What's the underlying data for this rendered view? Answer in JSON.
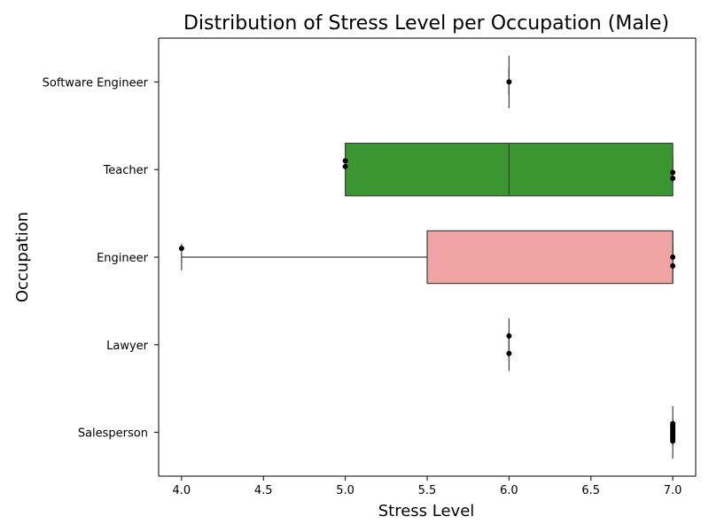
{
  "chart_data": {
    "type": "box",
    "orientation": "horizontal",
    "title": "Distribution of Stress Level per Occupation (Male)",
    "xlabel": "Stress Level",
    "ylabel": "Occupation",
    "xlim": [
      3.86,
      7.14
    ],
    "xticks": [
      "4.0",
      "4.5",
      "5.0",
      "5.5",
      "6.0",
      "6.5",
      "7.0"
    ],
    "categories": [
      "Software Engineer",
      "Teacher",
      "Engineer",
      "Lawyer",
      "Salesperson"
    ],
    "boxes": [
      {
        "category": "Software Engineer",
        "min": 6.0,
        "q1": 6.0,
        "median": 6.0,
        "q3": 6.0,
        "max": 6.0,
        "color": "#4c72b0",
        "points": [
          6.0
        ]
      },
      {
        "category": "Teacher",
        "min": 5.0,
        "q1": 5.0,
        "median": 6.0,
        "q3": 7.0,
        "max": 7.0,
        "color": "#3b9631",
        "points": [
          5.0,
          5.0,
          7.0,
          7.0
        ]
      },
      {
        "category": "Engineer",
        "min": 4.0,
        "q1": 5.5,
        "median": 7.0,
        "q3": 7.0,
        "max": 7.0,
        "color": "#f0a3a3",
        "points": [
          4.0,
          7.0,
          7.0
        ]
      },
      {
        "category": "Lawyer",
        "min": 6.0,
        "q1": 6.0,
        "median": 6.0,
        "q3": 6.0,
        "max": 6.0,
        "color": "#8172b2",
        "points": [
          6.0,
          6.0
        ]
      },
      {
        "category": "Salesperson",
        "min": 7.0,
        "q1": 7.0,
        "median": 7.0,
        "q3": 7.0,
        "max": 7.0,
        "color": "#937860",
        "points": [
          7.0,
          7.0,
          7.0,
          7.0,
          7.0,
          7.0,
          7.0,
          7.0,
          7.0,
          7.0,
          7.0,
          7.0
        ]
      }
    ],
    "grid": false,
    "legend": "none"
  }
}
